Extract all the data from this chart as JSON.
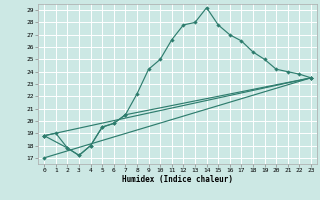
{
  "xlabel": "Humidex (Indice chaleur)",
  "bg_color": "#cce8e4",
  "grid_color": "#ffffff",
  "line_color": "#2e7d6e",
  "xlim": [
    -0.5,
    23.5
  ],
  "ylim": [
    16.5,
    29.5
  ],
  "xticks": [
    0,
    1,
    2,
    3,
    4,
    5,
    6,
    7,
    8,
    9,
    10,
    11,
    12,
    13,
    14,
    15,
    16,
    17,
    18,
    19,
    20,
    21,
    22,
    23
  ],
  "yticks": [
    17,
    18,
    19,
    20,
    21,
    22,
    23,
    24,
    25,
    26,
    27,
    28,
    29
  ],
  "line1_x": [
    0,
    1,
    2,
    3,
    4,
    5,
    6,
    7,
    8,
    9,
    10,
    11,
    12,
    13,
    14,
    15,
    16,
    17,
    18,
    19,
    20,
    21,
    22,
    23
  ],
  "line1_y": [
    18.8,
    19.0,
    17.8,
    17.2,
    18.0,
    19.5,
    19.8,
    20.5,
    22.2,
    24.2,
    25.0,
    26.6,
    27.8,
    28.0,
    29.2,
    27.8,
    27.0,
    26.5,
    25.6,
    25.0,
    24.2,
    24.0,
    23.8,
    23.5
  ],
  "line2_x": [
    0,
    2,
    3,
    4,
    5,
    6,
    7,
    23
  ],
  "line2_y": [
    18.8,
    17.8,
    17.2,
    18.0,
    19.5,
    19.8,
    20.5,
    23.5
  ],
  "line3_x": [
    0,
    23
  ],
  "line3_y": [
    18.8,
    23.5
  ],
  "line4_x": [
    0,
    23
  ],
  "line4_y": [
    17.0,
    23.5
  ]
}
